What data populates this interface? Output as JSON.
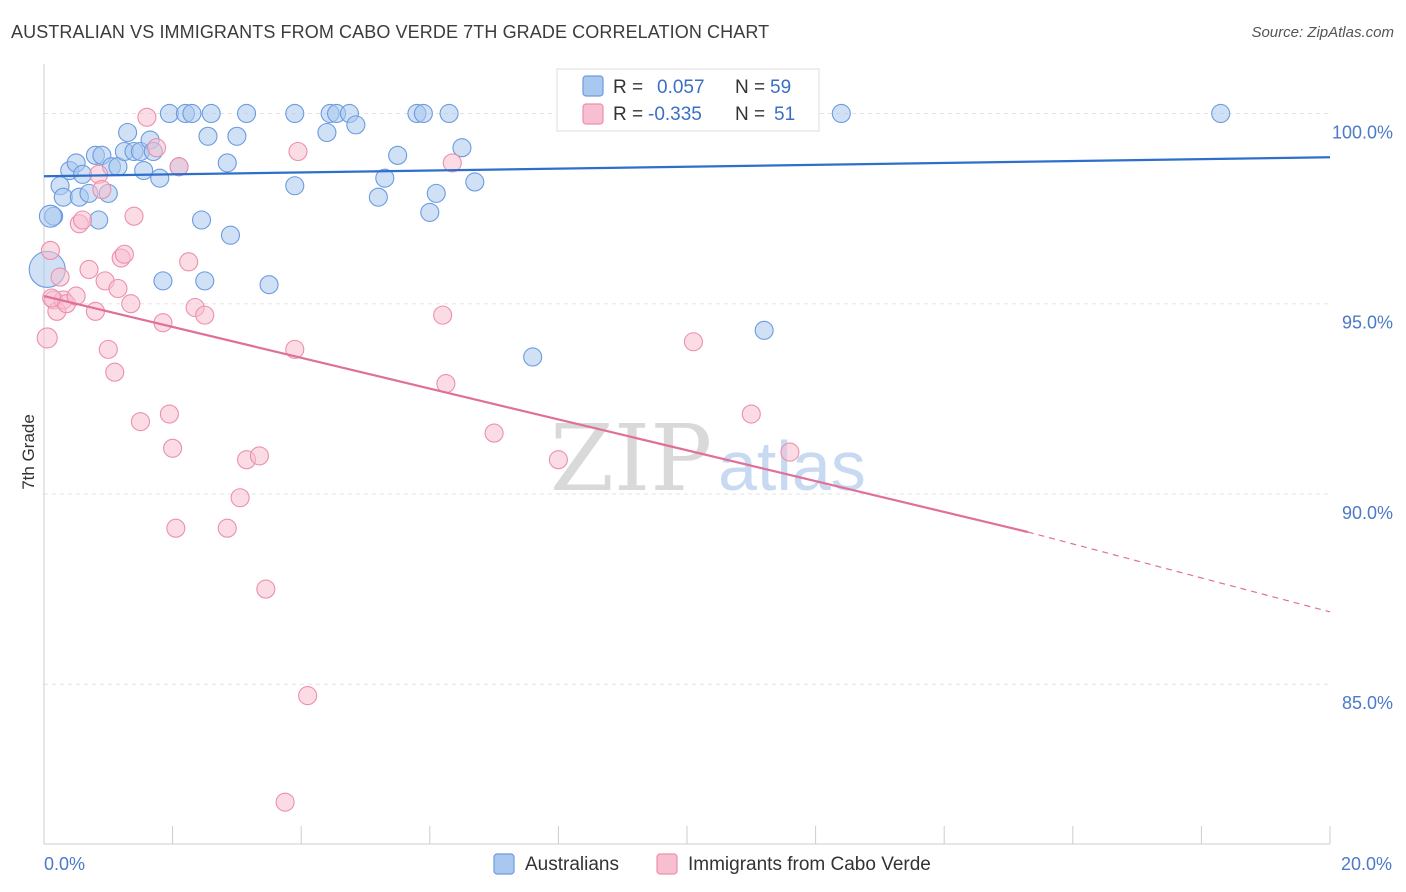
{
  "title": "AUSTRALIAN VS IMMIGRANTS FROM CABO VERDE 7TH GRADE CORRELATION CHART",
  "source": "Source: ZipAtlas.com",
  "watermark": {
    "zip": "ZIP",
    "atlas": "atlas"
  },
  "colors": {
    "blue_fill": "#a9c8ef",
    "blue_stroke": "#6b9be0",
    "blue_line": "#2f6fcc",
    "pink_fill": "#f7bfd0",
    "pink_stroke": "#ec8fae",
    "pink_line": "#e0709a",
    "grid": "#e3e3e3",
    "tick_text": "#4a7ac9"
  },
  "legend": {
    "rows": [
      {
        "r_label": "R =",
        "r_value": "0.057",
        "n_label": "N =",
        "n_value": "59",
        "series": "blue"
      },
      {
        "r_label": "R =",
        "r_value": "-0.335",
        "n_label": "N =",
        "n_value": "51",
        "series": "pink"
      }
    ]
  },
  "bottom_legend": [
    "Australians",
    "Immigrants from Cabo Verde"
  ],
  "chart_data": {
    "type": "scatter",
    "title": "AUSTRALIAN VS IMMIGRANTS FROM CABO VERDE 7TH GRADE CORRELATION CHART",
    "xlabel": "",
    "ylabel": "7th Grade",
    "xlim": [
      0,
      20
    ],
    "ylim": [
      80.8,
      101.3
    ],
    "x_tick_labels": [
      "0.0%",
      "20.0%"
    ],
    "y_ticks": [
      85,
      90,
      95,
      100
    ],
    "y_tick_labels": [
      "85.0%",
      "90.0%",
      "95.0%",
      "100.0%"
    ],
    "grid": true,
    "series": [
      {
        "name": "Australians",
        "color": "blue",
        "trend": {
          "x0": 0,
          "y0": 98.35,
          "x1": 20,
          "y1": 98.85
        },
        "points": [
          [
            0.15,
            97.3
          ],
          [
            0.25,
            98.1
          ],
          [
            0.3,
            97.8
          ],
          [
            0.4,
            98.5
          ],
          [
            0.5,
            98.7
          ],
          [
            0.55,
            97.8
          ],
          [
            0.6,
            98.4
          ],
          [
            0.7,
            97.9
          ],
          [
            0.8,
            98.9
          ],
          [
            0.85,
            97.2
          ],
          [
            0.9,
            98.9
          ],
          [
            1.0,
            97.9
          ],
          [
            1.05,
            98.6
          ],
          [
            1.15,
            98.6
          ],
          [
            1.25,
            99.0
          ],
          [
            1.3,
            99.5
          ],
          [
            1.4,
            99.0
          ],
          [
            1.5,
            99.0
          ],
          [
            1.55,
            98.5
          ],
          [
            1.65,
            99.3
          ],
          [
            1.7,
            99.0
          ],
          [
            1.8,
            98.3
          ],
          [
            1.95,
            100.0
          ],
          [
            2.1,
            98.6
          ],
          [
            2.2,
            100.0
          ],
          [
            2.3,
            100.0
          ],
          [
            2.45,
            97.2
          ],
          [
            2.5,
            95.6
          ],
          [
            2.55,
            99.4
          ],
          [
            2.6,
            100.0
          ],
          [
            2.9,
            96.8
          ],
          [
            2.85,
            98.7
          ],
          [
            3.0,
            99.4
          ],
          [
            3.15,
            100.0
          ],
          [
            3.5,
            95.5
          ],
          [
            3.9,
            100.0
          ],
          [
            3.9,
            98.1
          ],
          [
            4.4,
            99.5
          ],
          [
            4.45,
            100.0
          ],
          [
            4.55,
            100.0
          ],
          [
            4.75,
            100.0
          ],
          [
            4.85,
            99.7
          ],
          [
            5.2,
            97.8
          ],
          [
            5.3,
            98.3
          ],
          [
            5.5,
            98.9
          ],
          [
            5.8,
            100.0
          ],
          [
            5.9,
            100.0
          ],
          [
            6.0,
            97.4
          ],
          [
            6.1,
            97.9
          ],
          [
            6.3,
            100.0
          ],
          [
            6.5,
            99.1
          ],
          [
            6.7,
            98.2
          ],
          [
            7.6,
            93.6
          ],
          [
            11.2,
            94.3
          ],
          [
            12.4,
            100.0
          ],
          [
            18.3,
            100.0
          ],
          [
            0.1,
            97.3
          ],
          [
            0.05,
            95.9
          ],
          [
            1.85,
            95.6
          ]
        ]
      },
      {
        "name": "Immigrants from Cabo Verde",
        "color": "pink",
        "trend": {
          "x0": 0,
          "y0": 95.2,
          "x1": 15.3,
          "y1": 89.0,
          "dash_to_x": 20,
          "dash_to_y": 86.9
        },
        "points": [
          [
            0.05,
            94.1
          ],
          [
            0.1,
            96.4
          ],
          [
            0.15,
            95.1
          ],
          [
            0.2,
            94.8
          ],
          [
            0.25,
            95.7
          ],
          [
            0.3,
            95.1
          ],
          [
            0.35,
            95.0
          ],
          [
            0.5,
            95.2
          ],
          [
            0.55,
            97.1
          ],
          [
            0.6,
            97.2
          ],
          [
            0.7,
            95.9
          ],
          [
            0.8,
            94.8
          ],
          [
            0.85,
            98.4
          ],
          [
            0.9,
            98.0
          ],
          [
            0.95,
            95.6
          ],
          [
            1.0,
            93.8
          ],
          [
            1.1,
            93.2
          ],
          [
            1.15,
            95.4
          ],
          [
            1.2,
            96.2
          ],
          [
            1.25,
            96.3
          ],
          [
            1.35,
            95.0
          ],
          [
            1.4,
            97.3
          ],
          [
            1.5,
            91.9
          ],
          [
            1.6,
            99.9
          ],
          [
            1.75,
            99.1
          ],
          [
            1.85,
            94.5
          ],
          [
            1.95,
            92.1
          ],
          [
            2.0,
            91.2
          ],
          [
            2.05,
            89.1
          ],
          [
            2.1,
            98.6
          ],
          [
            2.25,
            96.1
          ],
          [
            2.35,
            94.9
          ],
          [
            2.5,
            94.7
          ],
          [
            2.85,
            89.1
          ],
          [
            3.05,
            89.9
          ],
          [
            3.15,
            90.9
          ],
          [
            3.35,
            91.0
          ],
          [
            3.45,
            87.5
          ],
          [
            3.75,
            81.9
          ],
          [
            3.9,
            93.8
          ],
          [
            3.95,
            99.0
          ],
          [
            4.1,
            84.7
          ],
          [
            6.2,
            94.7
          ],
          [
            6.25,
            92.9
          ],
          [
            6.35,
            98.7
          ],
          [
            7.0,
            91.6
          ],
          [
            8.0,
            90.9
          ],
          [
            10.1,
            94.0
          ],
          [
            11.0,
            92.1
          ],
          [
            11.6,
            91.1
          ],
          [
            0.12,
            95.15
          ]
        ]
      }
    ]
  }
}
